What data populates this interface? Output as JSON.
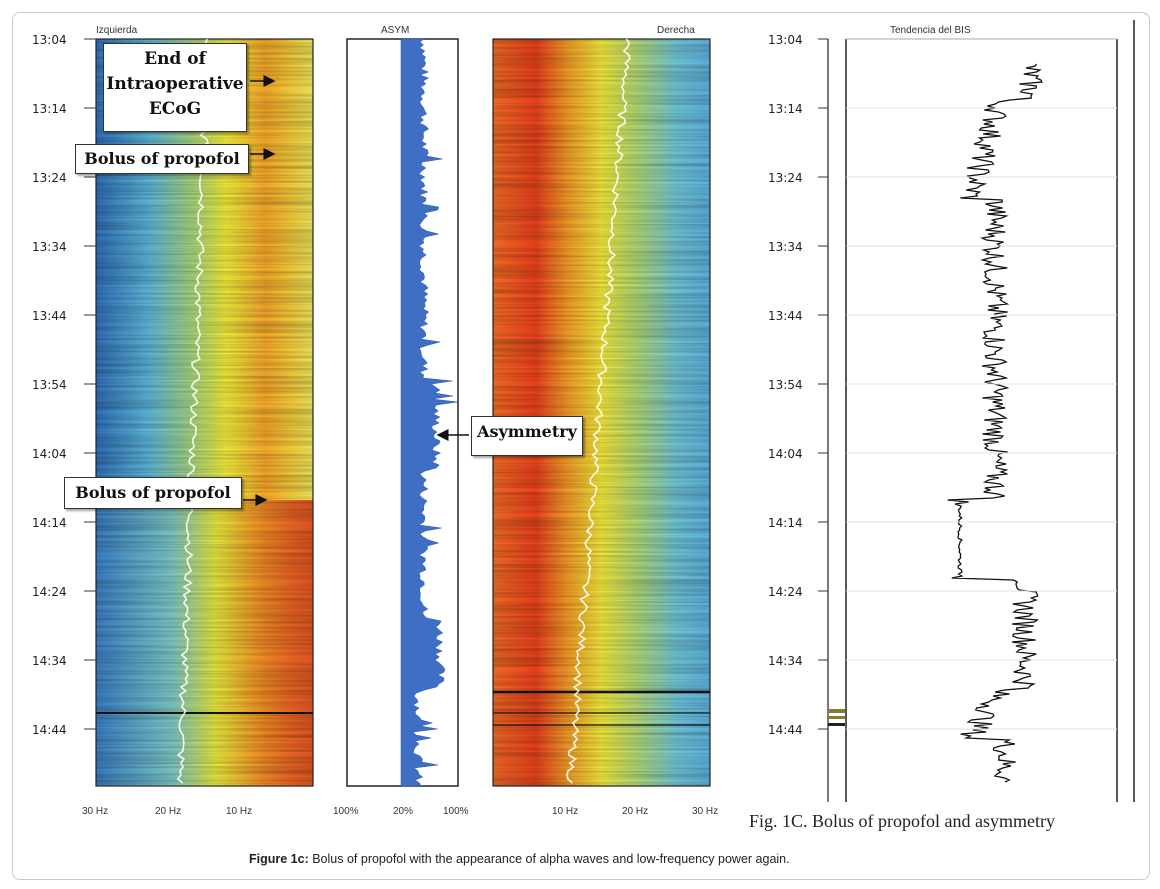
{
  "panels": {
    "left_title": "Izquierda",
    "asym_title": "ASYM",
    "right_title": "Derecha",
    "bis_title": "Tendencia del BIS"
  },
  "time_ticks": [
    "13:04",
    "13:14",
    "13:24",
    "13:34",
    "13:44",
    "13:54",
    "14:04",
    "14:14",
    "14:24",
    "14:34",
    "14:44"
  ],
  "left_freq_ticks": [
    "30 Hz",
    "20 Hz",
    "10 Hz"
  ],
  "asym_ticks": [
    "100%",
    "20%",
    "100%"
  ],
  "right_freq_ticks": [
    "10 Hz",
    "20 Hz",
    "30 Hz"
  ],
  "annotations": {
    "end_ecog": [
      "End of",
      "Intraoperative",
      "ECoG"
    ],
    "bolus_1": "Bolus of propofol",
    "bolus_2": "Bolus of propofol",
    "asymmetry": "Asymmetry"
  },
  "figure_title": "Fig. 1C. Bolus of propofol and asymmetry",
  "caption": {
    "label": "Figure 1c:",
    "text": " Bolus of propofol with the appearance of alpha waves and low-frequency power again."
  },
  "colors": {
    "asym_fill": "#3f6fc4",
    "frame_border": "#c9c9c9"
  },
  "chart_data": [
    {
      "type": "heatmap",
      "title": "Izquierda",
      "xlabel": "",
      "x_ticks": [
        "30 Hz",
        "20 Hz",
        "10 Hz"
      ],
      "y_ticks": [
        "13:04",
        "13:14",
        "13:24",
        "13:34",
        "13:44",
        "13:54",
        "14:04",
        "14:14",
        "14:24",
        "14:34",
        "14:44"
      ],
      "x_range_hz": [
        30,
        0
      ],
      "y_range": [
        "13:04",
        "14:52"
      ]
    },
    {
      "type": "area",
      "title": "ASYM",
      "x_ticks": [
        "100%",
        "20%",
        "100%"
      ]
    },
    {
      "type": "heatmap",
      "title": "Derecha",
      "x_ticks": [
        "10 Hz",
        "20 Hz",
        "30 Hz"
      ],
      "x_range_hz": [
        0,
        30
      ]
    },
    {
      "type": "line",
      "title": "Tendencia del BIS",
      "y_ticks": [
        "13:04",
        "13:14",
        "13:24",
        "13:34",
        "13:44",
        "13:54",
        "14:04",
        "14:14",
        "14:24",
        "14:34",
        "14:44"
      ]
    }
  ]
}
